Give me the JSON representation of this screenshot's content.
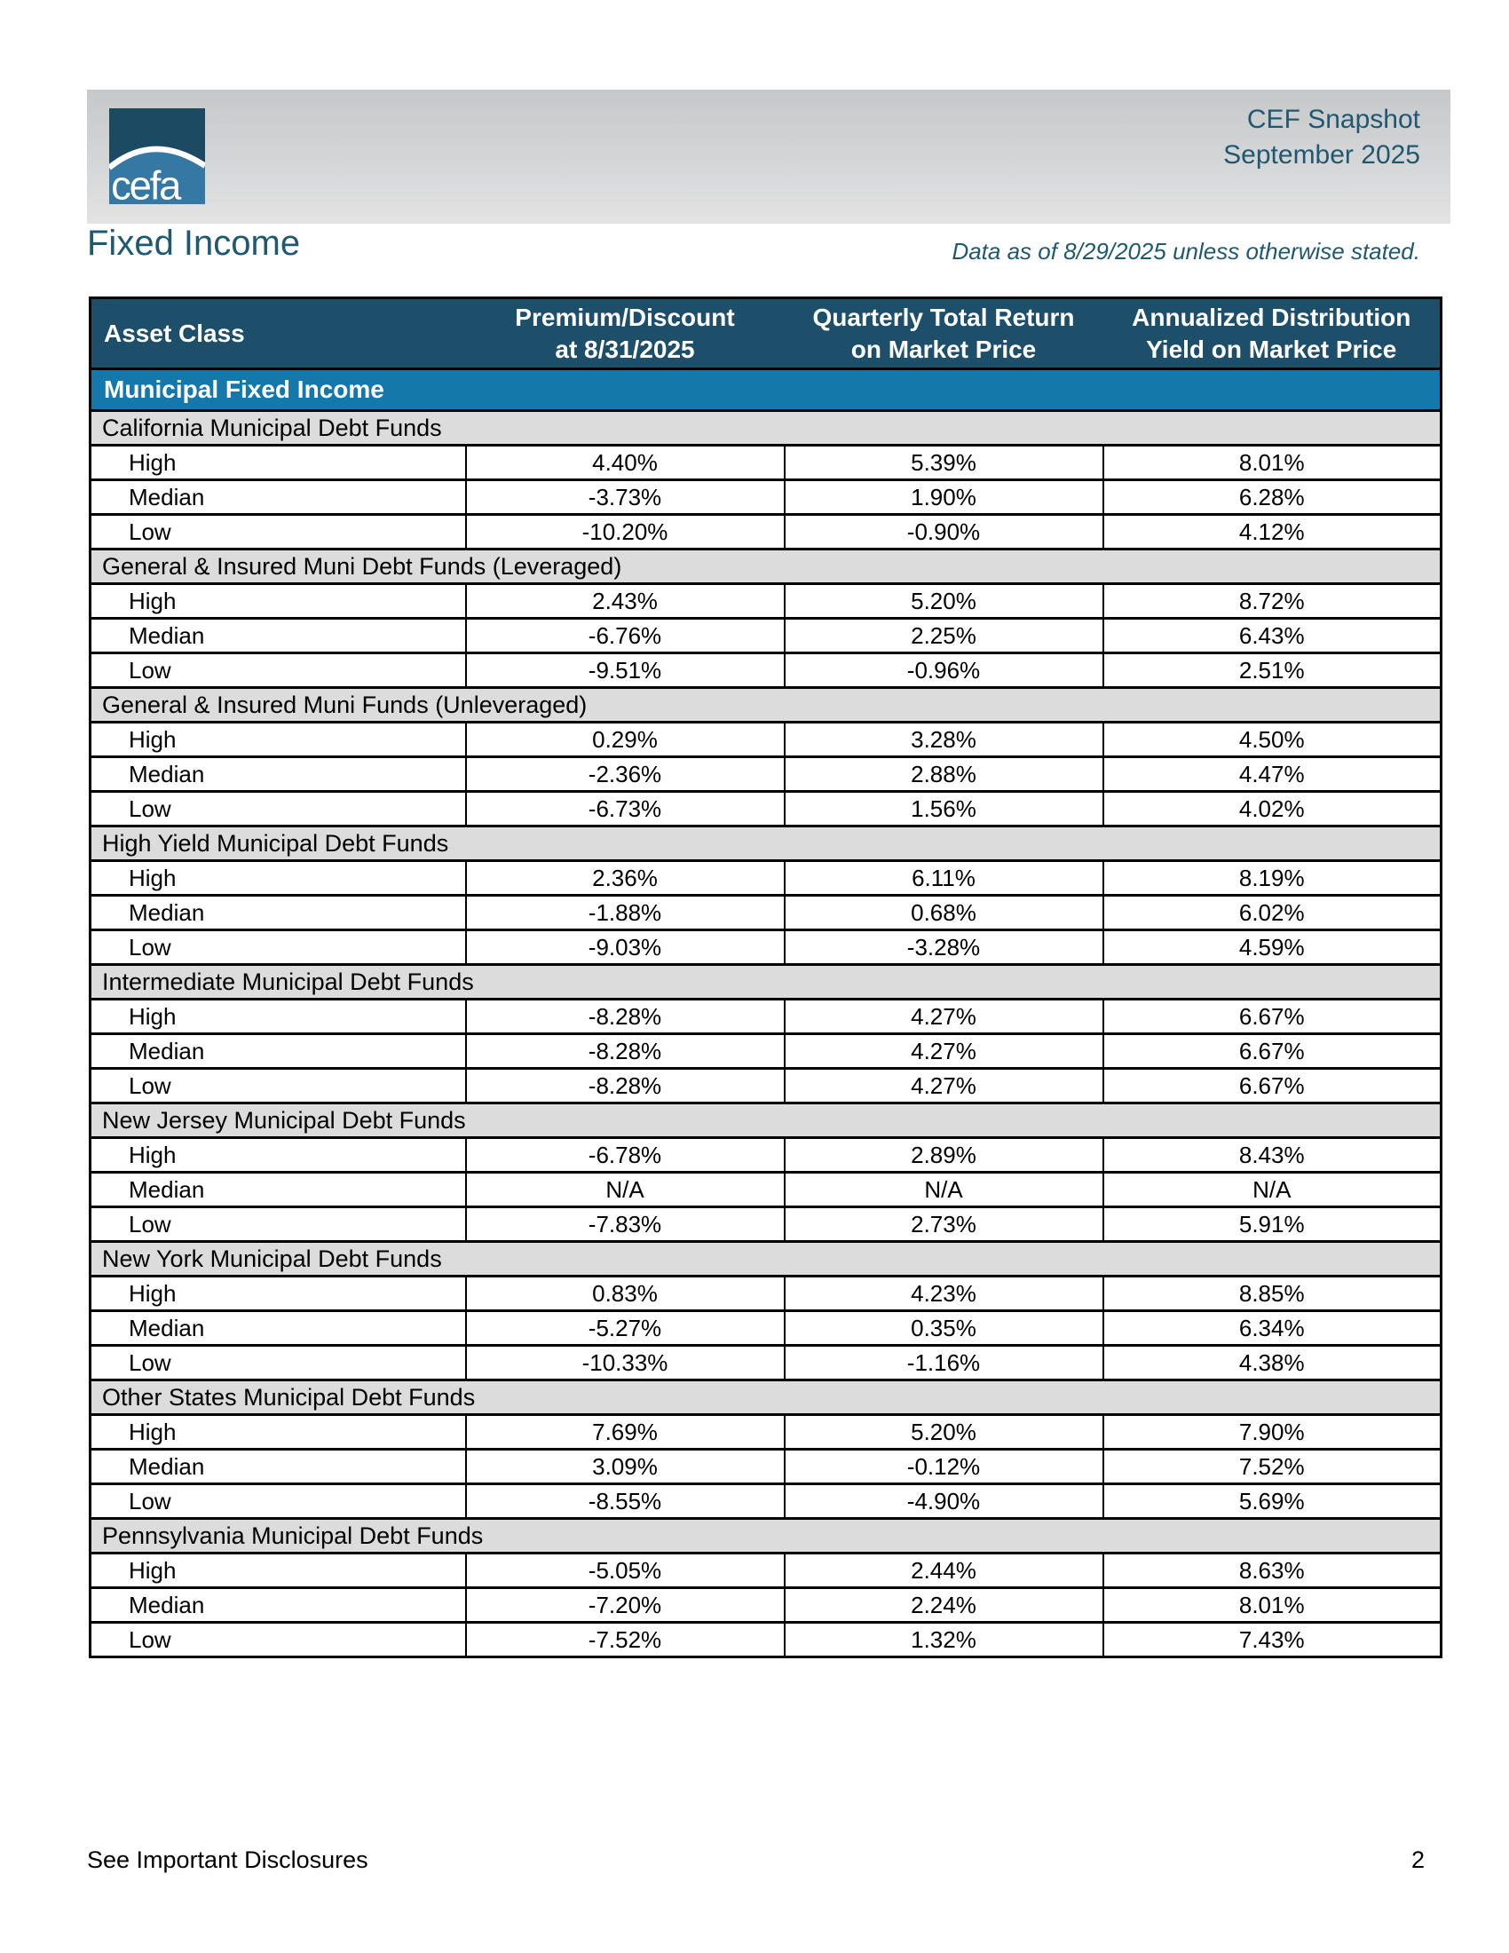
{
  "header": {
    "logo_text": "cefa",
    "product": "CEF Snapshot",
    "period": "September 2025"
  },
  "page": {
    "title": "Fixed Income",
    "data_note": "Data as of 8/29/2025 unless otherwise stated.",
    "footer_left": "See Important Disclosures",
    "page_number": "2"
  },
  "colors": {
    "table_header_bg": "#1d4f6a",
    "group_row_bg": "#1578aa",
    "section_row_bg": "#dcdcdc",
    "accent_text": "#1e5871",
    "logo_dark": "#1d4a63",
    "logo_light": "#3478a3"
  },
  "table": {
    "columns": [
      {
        "line1": "Asset Class",
        "line2": ""
      },
      {
        "line1": "Premium/Discount",
        "line2": "at 8/31/2025"
      },
      {
        "line1": "Quarterly Total Return",
        "line2": "on Market Price"
      },
      {
        "line1": "Annualized Distribution",
        "line2": "Yield on Market Price"
      }
    ],
    "group_header": "Municipal Fixed Income",
    "sections": [
      {
        "name": "California Municipal Debt Funds",
        "rows": [
          {
            "label": "High",
            "values": [
              "4.40%",
              "5.39%",
              "8.01%"
            ]
          },
          {
            "label": "Median",
            "values": [
              "-3.73%",
              "1.90%",
              "6.28%"
            ]
          },
          {
            "label": "Low",
            "values": [
              "-10.20%",
              "-0.90%",
              "4.12%"
            ]
          }
        ]
      },
      {
        "name": "General & Insured Muni Debt Funds (Leveraged)",
        "rows": [
          {
            "label": "High",
            "values": [
              "2.43%",
              "5.20%",
              "8.72%"
            ]
          },
          {
            "label": "Median",
            "values": [
              "-6.76%",
              "2.25%",
              "6.43%"
            ]
          },
          {
            "label": "Low",
            "values": [
              "-9.51%",
              "-0.96%",
              "2.51%"
            ]
          }
        ]
      },
      {
        "name": "General & Insured Muni Funds (Unleveraged)",
        "rows": [
          {
            "label": "High",
            "values": [
              "0.29%",
              "3.28%",
              "4.50%"
            ]
          },
          {
            "label": "Median",
            "values": [
              "-2.36%",
              "2.88%",
              "4.47%"
            ]
          },
          {
            "label": "Low",
            "values": [
              "-6.73%",
              "1.56%",
              "4.02%"
            ]
          }
        ]
      },
      {
        "name": "High Yield Municipal Debt Funds",
        "rows": [
          {
            "label": "High",
            "values": [
              "2.36%",
              "6.11%",
              "8.19%"
            ]
          },
          {
            "label": "Median",
            "values": [
              "-1.88%",
              "0.68%",
              "6.02%"
            ]
          },
          {
            "label": "Low",
            "values": [
              "-9.03%",
              "-3.28%",
              "4.59%"
            ]
          }
        ]
      },
      {
        "name": "Intermediate Municipal Debt Funds",
        "rows": [
          {
            "label": "High",
            "values": [
              "-8.28%",
              "4.27%",
              "6.67%"
            ]
          },
          {
            "label": "Median",
            "values": [
              "-8.28%",
              "4.27%",
              "6.67%"
            ]
          },
          {
            "label": "Low",
            "values": [
              "-8.28%",
              "4.27%",
              "6.67%"
            ]
          }
        ]
      },
      {
        "name": "New Jersey Municipal Debt Funds",
        "rows": [
          {
            "label": "High",
            "values": [
              "-6.78%",
              "2.89%",
              "8.43%"
            ]
          },
          {
            "label": "Median",
            "values": [
              "N/A",
              "N/A",
              "N/A"
            ]
          },
          {
            "label": "Low",
            "values": [
              "-7.83%",
              "2.73%",
              "5.91%"
            ]
          }
        ]
      },
      {
        "name": "New York Municipal Debt Funds",
        "rows": [
          {
            "label": "High",
            "values": [
              "0.83%",
              "4.23%",
              "8.85%"
            ]
          },
          {
            "label": "Median",
            "values": [
              "-5.27%",
              "0.35%",
              "6.34%"
            ]
          },
          {
            "label": "Low",
            "values": [
              "-10.33%",
              "-1.16%",
              "4.38%"
            ]
          }
        ]
      },
      {
        "name": "Other States Municipal Debt Funds",
        "rows": [
          {
            "label": "High",
            "values": [
              "7.69%",
              "5.20%",
              "7.90%"
            ]
          },
          {
            "label": "Median",
            "values": [
              "3.09%",
              "-0.12%",
              "7.52%"
            ]
          },
          {
            "label": "Low",
            "values": [
              "-8.55%",
              "-4.90%",
              "5.69%"
            ]
          }
        ]
      },
      {
        "name": "Pennsylvania Municipal Debt Funds",
        "rows": [
          {
            "label": "High",
            "values": [
              "-5.05%",
              "2.44%",
              "8.63%"
            ]
          },
          {
            "label": "Median",
            "values": [
              "-7.20%",
              "2.24%",
              "8.01%"
            ]
          },
          {
            "label": "Low",
            "values": [
              "-7.52%",
              "1.32%",
              "7.43%"
            ]
          }
        ]
      }
    ]
  }
}
